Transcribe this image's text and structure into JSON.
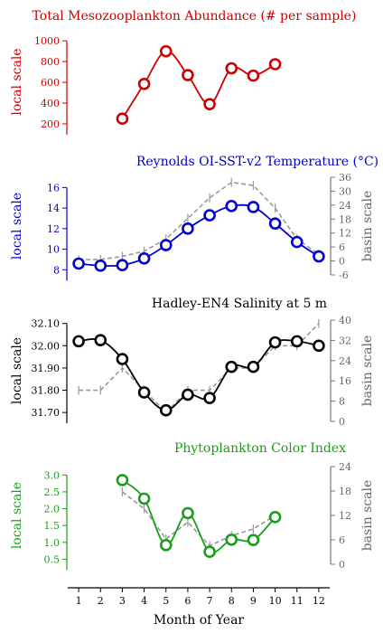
{
  "chart_data": [
    {
      "type": "line",
      "title": "Total Mesozooplankton Abundance (# per sample)",
      "color": "#cc0000",
      "ylabel": "local scale",
      "ylim": [
        130,
        1080
      ],
      "yticks": [
        200,
        400,
        600,
        800,
        1000
      ],
      "ytick_labels": [
        "200",
        "400",
        "600",
        "800",
        "1000"
      ],
      "series": [
        {
          "x": [
            3,
            4,
            5,
            6,
            7,
            8,
            9,
            10
          ],
          "values": [
            250,
            585,
            900,
            670,
            390,
            735,
            665,
            775
          ]
        }
      ]
    },
    {
      "type": "line",
      "title": "Reynolds OI-SST-v2 Temperature (°C)",
      "color": "#0000cc",
      "ylabel": "local scale",
      "ylim": [
        7.5,
        17
      ],
      "yticks": [
        8,
        10,
        12,
        14,
        16
      ],
      "ytick_labels": [
        "8",
        "10",
        "12",
        "14",
        "16"
      ],
      "series": [
        {
          "x": [
            1,
            2,
            3,
            4,
            5,
            6,
            7,
            8,
            9,
            10,
            11,
            12
          ],
          "values": [
            8.6,
            8.4,
            8.45,
            9.1,
            10.4,
            12.0,
            13.3,
            14.2,
            14.1,
            12.5,
            10.7,
            9.3
          ]
        }
      ],
      "y2label": "basin scale",
      "y2lim": [
        -6,
        36
      ],
      "y2ticks": [
        -6,
        0,
        6,
        12,
        18,
        24,
        30,
        36
      ],
      "y2tick_labels": [
        "-6",
        "0",
        "6",
        "12",
        "18",
        "24",
        "30",
        "36"
      ],
      "basin": {
        "x": [
          1,
          2,
          3,
          4,
          5,
          6,
          7,
          8,
          9,
          10,
          11,
          12
        ],
        "values": [
          9,
          9,
          9.3,
          9.8,
          11,
          13,
          15,
          16.5,
          16.2,
          14,
          11,
          9.5
        ]
      }
    },
    {
      "type": "line",
      "title": "Hadley-EN4 Salinity at 5 m",
      "color": "#000000",
      "ylabel": "local scale",
      "ylim": [
        31.66,
        32.115
      ],
      "yticks": [
        31.7,
        31.8,
        31.9,
        32.0,
        32.1
      ],
      "ytick_labels": [
        "31.70",
        "31.80",
        "31.90",
        "32.00",
        "32.10"
      ],
      "series": [
        {
          "x": [
            1,
            2,
            3,
            4,
            5,
            6,
            7,
            8,
            9,
            10,
            11,
            12
          ],
          "values": [
            32.02,
            32.025,
            31.94,
            31.79,
            31.71,
            31.78,
            31.765,
            31.905,
            31.905,
            32.015,
            32.02,
            32.0
          ]
        }
      ],
      "y2label": "basin scale",
      "y2lim": [
        0,
        40
      ],
      "y2ticks": [
        0,
        8,
        16,
        24,
        32,
        40
      ],
      "y2tick_labels": [
        "0",
        "8",
        "16",
        "24",
        "32",
        "40"
      ],
      "basin": {
        "x": [
          1,
          2,
          3,
          4,
          5,
          6,
          7,
          8,
          9,
          10,
          11,
          12
        ],
        "values": [
          31.8,
          31.8,
          31.9,
          31.8,
          31.7,
          31.8,
          31.8,
          31.9,
          31.9,
          32.0,
          32.0,
          32.1
        ]
      }
    },
    {
      "type": "line",
      "title": "Phytoplankton Color Index",
      "color": "#1a9e1a",
      "ylabel": "local scale",
      "ylim": [
        0.35,
        3.25
      ],
      "yticks": [
        0.5,
        1.0,
        1.5,
        2.0,
        2.5,
        3.0
      ],
      "ytick_labels": [
        "0.5",
        "1.0",
        "1.5",
        "2.0",
        "2.5",
        "3.0"
      ],
      "series": [
        {
          "x": [
            3,
            4,
            5,
            6,
            7,
            8,
            9,
            10
          ],
          "values": [
            2.85,
            2.3,
            0.92,
            1.87,
            0.72,
            1.08,
            1.07,
            1.75
          ]
        }
      ],
      "y2label": "basin scale",
      "y2lim": [
        0,
        24
      ],
      "y2ticks": [
        0,
        6,
        12,
        18,
        24
      ],
      "y2tick_labels": [
        "0",
        "6",
        "12",
        "18",
        "24"
      ],
      "basin": {
        "x": [
          3,
          4,
          5,
          6,
          7,
          8,
          9,
          10
        ],
        "values": [
          2.5,
          2.0,
          1.1,
          1.6,
          0.9,
          1.2,
          1.4,
          1.8
        ]
      }
    }
  ],
  "xaxis": {
    "label": "Month of Year",
    "ticks": [
      1,
      2,
      3,
      4,
      5,
      6,
      7,
      8,
      9,
      10,
      11,
      12
    ],
    "tick_labels": [
      "1",
      "2",
      "3",
      "4",
      "5",
      "6",
      "7",
      "8",
      "9",
      "10",
      "11",
      "12"
    ],
    "xlim": [
      0.5,
      12.5
    ]
  }
}
